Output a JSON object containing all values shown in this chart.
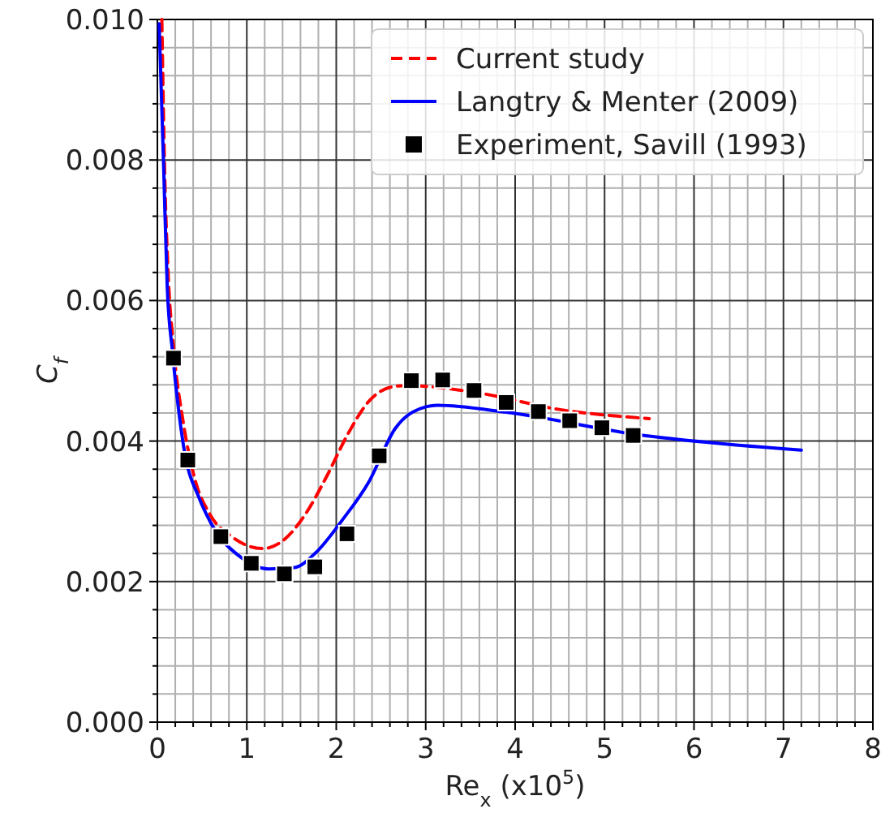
{
  "chart_data": {
    "type": "line",
    "xlabel": "Re$_{x}$ (x10$^{5}$)",
    "ylabel": "C$_{f}$",
    "xlim": [
      0,
      8
    ],
    "ylim": [
      0,
      0.01
    ],
    "xticks": [
      0,
      1,
      2,
      3,
      4,
      5,
      6,
      7,
      8
    ],
    "yticks": [
      {
        "value": 0,
        "label": "0.000"
      },
      {
        "value": 0.002,
        "label": "0.002"
      },
      {
        "value": 0.004,
        "label": "0.004"
      },
      {
        "value": 0.006,
        "label": "0.006"
      },
      {
        "value": 0.008,
        "label": "0.008"
      },
      {
        "value": 0.01,
        "label": "0.010"
      }
    ],
    "grid": true,
    "legend": "top right",
    "series": [
      {
        "name": "Current study",
        "color": "#ff0000",
        "line_style": "dashed",
        "marker": "none",
        "x": [
          0.05,
          0.08,
          0.12,
          0.18,
          0.29,
          0.41,
          0.59,
          0.82,
          1.18,
          1.42,
          1.65,
          1.89,
          2.13,
          2.36,
          2.66,
          2.78,
          3.61,
          4.49,
          5.5
        ],
        "values": [
          0.01,
          0.0079,
          0.0064,
          0.00534,
          0.00426,
          0.0035,
          0.00295,
          0.00265,
          0.00247,
          0.0026,
          0.00295,
          0.00349,
          0.0041,
          0.00456,
          0.00478,
          0.00479,
          0.00468,
          0.00445,
          0.00432
        ]
      },
      {
        "name": "Langtry & Menter (2009)",
        "color": "#0000ff",
        "line_style": "solid",
        "marker": "none",
        "x": [
          0.02,
          0.07,
          0.11,
          0.17,
          0.29,
          0.47,
          0.6,
          0.94,
          1.24,
          1.53,
          1.77,
          2.07,
          2.36,
          2.66,
          3.01,
          3.13,
          3.9,
          5.38,
          7.2
        ],
        "values": [
          0.00994,
          0.0079,
          0.0062,
          0.00526,
          0.00395,
          0.00318,
          0.00283,
          0.00234,
          0.00218,
          0.0022,
          0.00241,
          0.00288,
          0.00341,
          0.00418,
          0.00449,
          0.00451,
          0.00441,
          0.00409,
          0.00387
        ]
      },
      {
        "name": "Experiment, Savill (1993)",
        "type": "scatter",
        "color": "#000000",
        "marker": "square",
        "x": [
          0.18,
          0.34,
          0.71,
          1.05,
          1.42,
          1.76,
          2.12,
          2.48,
          2.84,
          3.19,
          3.54,
          3.9,
          4.26,
          4.61,
          4.97,
          5.32
        ],
        "values": [
          0.00518,
          0.00373,
          0.00264,
          0.00226,
          0.00211,
          0.00221,
          0.00268,
          0.00379,
          0.00486,
          0.00487,
          0.00472,
          0.00455,
          0.00442,
          0.00429,
          0.00419,
          0.00408
        ]
      }
    ]
  }
}
